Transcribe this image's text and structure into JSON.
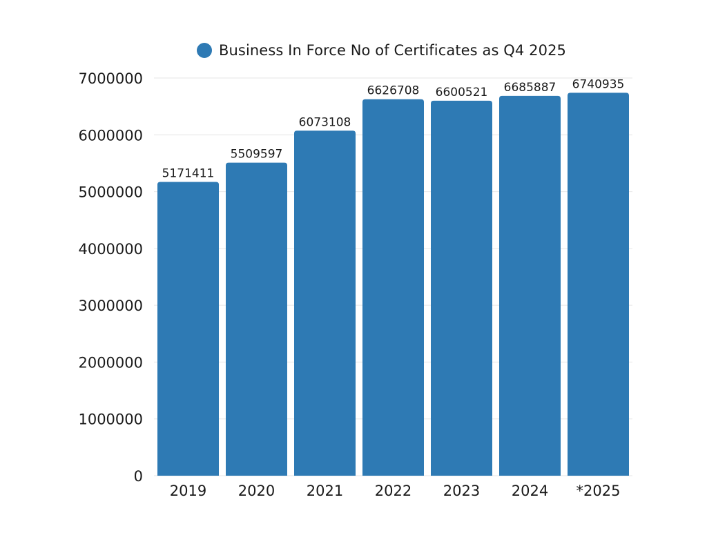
{
  "chart_data": {
    "type": "bar",
    "categories": [
      "2019",
      "2020",
      "2021",
      "2022",
      "2023",
      "2024",
      "*2025"
    ],
    "series": [
      {
        "name": "Business In Force No of Certificates as Q4 2025",
        "values": [
          5171411,
          5509597,
          6073108,
          6626708,
          6600521,
          6685887,
          6740935
        ]
      }
    ],
    "data_labels": [
      "5171411",
      "5509597",
      "6073108",
      "6626708",
      "6600521",
      "6685887",
      "6740935"
    ],
    "y_ticks": [
      "0",
      "1000000",
      "2000000",
      "3000000",
      "4000000",
      "5000000",
      "6000000",
      "7000000"
    ],
    "ylim": [
      0,
      7000000
    ],
    "grid": true,
    "legend_position": "top",
    "colors": {
      "bar": "#2e7ab4",
      "grid": "#e6e6e6",
      "text": "#1a1a1a"
    }
  }
}
